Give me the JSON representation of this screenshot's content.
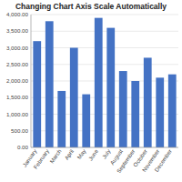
{
  "chart_data": {
    "type": "bar",
    "title": "Changing Chart Axis Scale Automatically",
    "categories": [
      "January",
      "February",
      "March",
      "April",
      "May",
      "June",
      "July",
      "August",
      "September",
      "October",
      "November",
      "December"
    ],
    "values": [
      3200,
      3800,
      1700,
      3000,
      1600,
      3900,
      3600,
      2300,
      2000,
      2700,
      2100,
      2200
    ],
    "color": "#4472C4",
    "ylim": [
      0,
      4000
    ],
    "yticks": [
      {
        "value": 0,
        "label": "0.00"
      },
      {
        "value": 500,
        "label": "500.00"
      },
      {
        "value": 1000,
        "label": "1,000.00"
      },
      {
        "value": 1500,
        "label": "1,500.00"
      },
      {
        "value": 2000,
        "label": "2,000.00"
      },
      {
        "value": 2500,
        "label": "2,500.00"
      },
      {
        "value": 3000,
        "label": "3,000.00"
      },
      {
        "value": 3500,
        "label": "3,500.00"
      },
      {
        "value": 4000,
        "label": "4,000.00"
      }
    ],
    "grid": true
  }
}
